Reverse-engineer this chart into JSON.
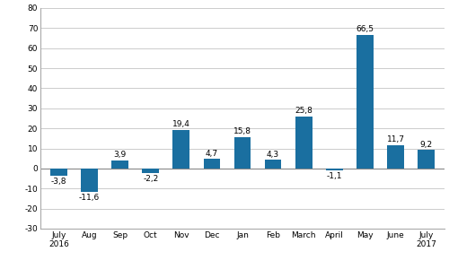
{
  "categories": [
    "July\n2016",
    "Aug",
    "Sep",
    "Oct",
    "Nov",
    "Dec",
    "Jan",
    "Feb",
    "March",
    "April",
    "May",
    "June",
    "July\n2017"
  ],
  "values": [
    -3.8,
    -11.6,
    3.9,
    -2.2,
    19.4,
    4.7,
    15.8,
    4.3,
    25.8,
    -1.1,
    66.5,
    11.7,
    9.2
  ],
  "bar_color": "#1a6fa0",
  "ylim": [
    -30,
    80
  ],
  "yticks": [
    -30,
    -20,
    -10,
    0,
    10,
    20,
    30,
    40,
    50,
    60,
    70,
    80
  ],
  "label_fontsize": 6.5,
  "tick_fontsize": 6.5,
  "background_color": "#ffffff",
  "grid_color": "#cccccc",
  "bar_width": 0.55
}
